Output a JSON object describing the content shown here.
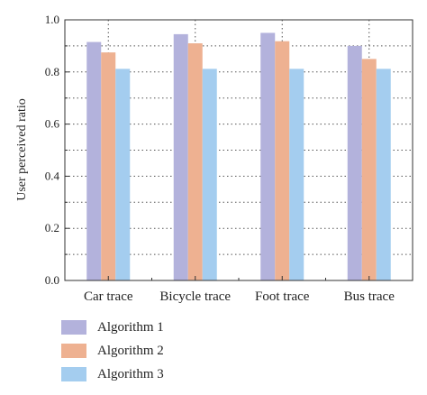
{
  "chart_data": {
    "type": "bar",
    "title": "",
    "xlabel": "",
    "ylabel": "User perceived ratio",
    "ylim": [
      0,
      1.0
    ],
    "yticks": [
      "0.0",
      "0.2",
      "0.4",
      "0.6",
      "0.8",
      "1.0"
    ],
    "grid": true,
    "legend_position": "bottom-left",
    "categories": [
      "Car trace",
      "Bicycle trace",
      "Foot trace",
      "Bus trace"
    ],
    "series": [
      {
        "name": "Algorithm 1",
        "color": "#b3b2dc",
        "values": [
          0.915,
          0.945,
          0.95,
          0.9
        ]
      },
      {
        "name": "Algorithm 2",
        "color": "#eeb191",
        "values": [
          0.875,
          0.91,
          0.918,
          0.85
        ]
      },
      {
        "name": "Algorithm 3",
        "color": "#a4cdef",
        "values": [
          0.812,
          0.812,
          0.812,
          0.812
        ]
      }
    ]
  }
}
